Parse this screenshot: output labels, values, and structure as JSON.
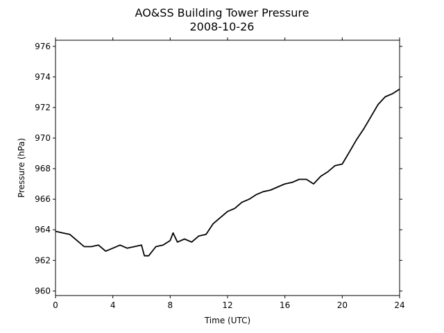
{
  "chart_data": {
    "type": "line",
    "title": "AO&SS Building Tower Pressure",
    "subtitle": "2008-10-26",
    "xlabel": "Time (UTC)",
    "ylabel": "Pressure (hPa)",
    "xlim": [
      0,
      24
    ],
    "ylim": [
      959.7,
      976.4
    ],
    "xticks": [
      0,
      4,
      8,
      12,
      16,
      20,
      24
    ],
    "yticks": [
      960,
      962,
      964,
      966,
      968,
      970,
      972,
      974,
      976
    ],
    "grid": false,
    "line_color": "#000000",
    "series": [
      {
        "x": [
          0,
          0.5,
          1,
          1.5,
          2,
          2.5,
          3,
          3.5,
          4,
          4.5,
          5,
          5.5,
          6,
          6.2,
          6.5,
          7,
          7.5,
          8,
          8.2,
          8.5,
          9,
          9.5,
          10,
          10.5,
          11,
          11.5,
          12,
          12.5,
          13,
          13.5,
          14,
          14.5,
          15,
          15.5,
          16,
          16.5,
          17,
          17.5,
          18,
          18.5,
          19,
          19.5,
          20,
          20.5,
          21,
          21.5,
          22,
          22.5,
          23,
          23.5,
          24
        ],
        "y": [
          963.9,
          963.8,
          963.7,
          963.3,
          962.9,
          962.9,
          963.0,
          962.6,
          962.8,
          963.0,
          962.8,
          962.9,
          963.0,
          962.3,
          962.3,
          962.9,
          963.0,
          963.3,
          963.8,
          963.2,
          963.4,
          963.2,
          963.6,
          963.7,
          964.4,
          964.8,
          965.2,
          965.4,
          965.8,
          966.0,
          966.3,
          966.5,
          966.6,
          966.8,
          967.0,
          967.1,
          967.3,
          967.3,
          967.0,
          967.5,
          967.8,
          968.2,
          968.3,
          969.1,
          969.9,
          970.6,
          971.4,
          972.2,
          972.7,
          972.9,
          973.2
        ]
      }
    ]
  }
}
